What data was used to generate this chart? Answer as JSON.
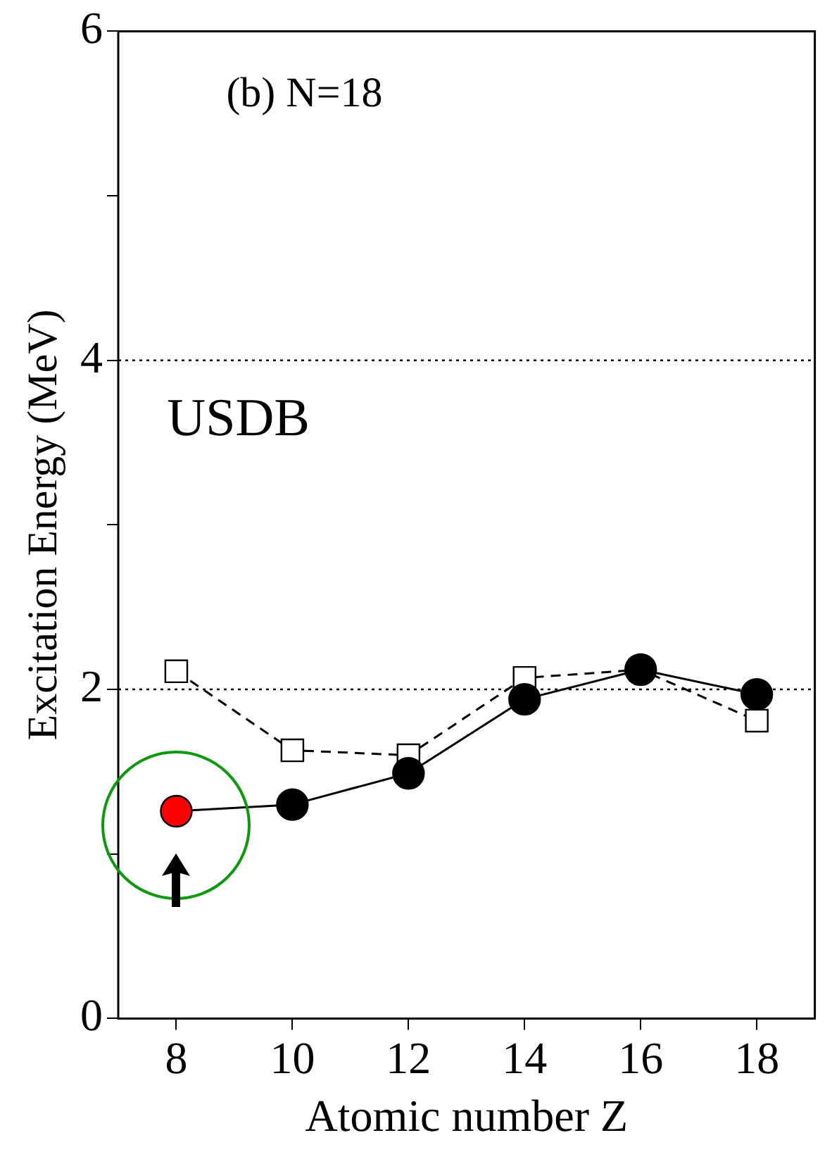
{
  "chart_data": {
    "type": "line",
    "xlabel": "Atomic number Z",
    "ylabel": "Excitation Energy (MeV)",
    "x": [
      8,
      10,
      12,
      14,
      16,
      18
    ],
    "series": [
      {
        "color": "#000000",
        "colors": [
          "#ff0000",
          "#000000",
          "#000000",
          "#000000",
          "#000000",
          "#000000"
        ],
        "marker": "circle",
        "line_style": "solid",
        "values": [
          1.26,
          1.3,
          1.49,
          1.94,
          2.12,
          1.97
        ]
      },
      {
        "color": "#000000",
        "marker": "square",
        "line_style": "dashed",
        "values": [
          2.11,
          1.63,
          1.6,
          2.07,
          2.12,
          1.81
        ]
      }
    ],
    "xlim": [
      7,
      19
    ],
    "xticks": [
      8,
      10,
      12,
      14,
      16,
      18
    ],
    "ylim": [
      0,
      6
    ],
    "yticks": [
      0,
      {
        "value": 1,
        "label": null
      },
      2,
      {
        "value": 3,
        "label": null
      },
      4,
      {
        "value": 5,
        "label": null
      },
      6
    ],
    "ref_lines": [
      {
        "axis": "y",
        "value": 2,
        "line_style": "dotted",
        "color": "#000000"
      },
      {
        "axis": "y",
        "value": 4,
        "line_style": "dotted",
        "color": "#000000"
      }
    ],
    "annotations": [
      "(b) N=18",
      "USDB"
    ],
    "grid": false,
    "legend": false
  }
}
